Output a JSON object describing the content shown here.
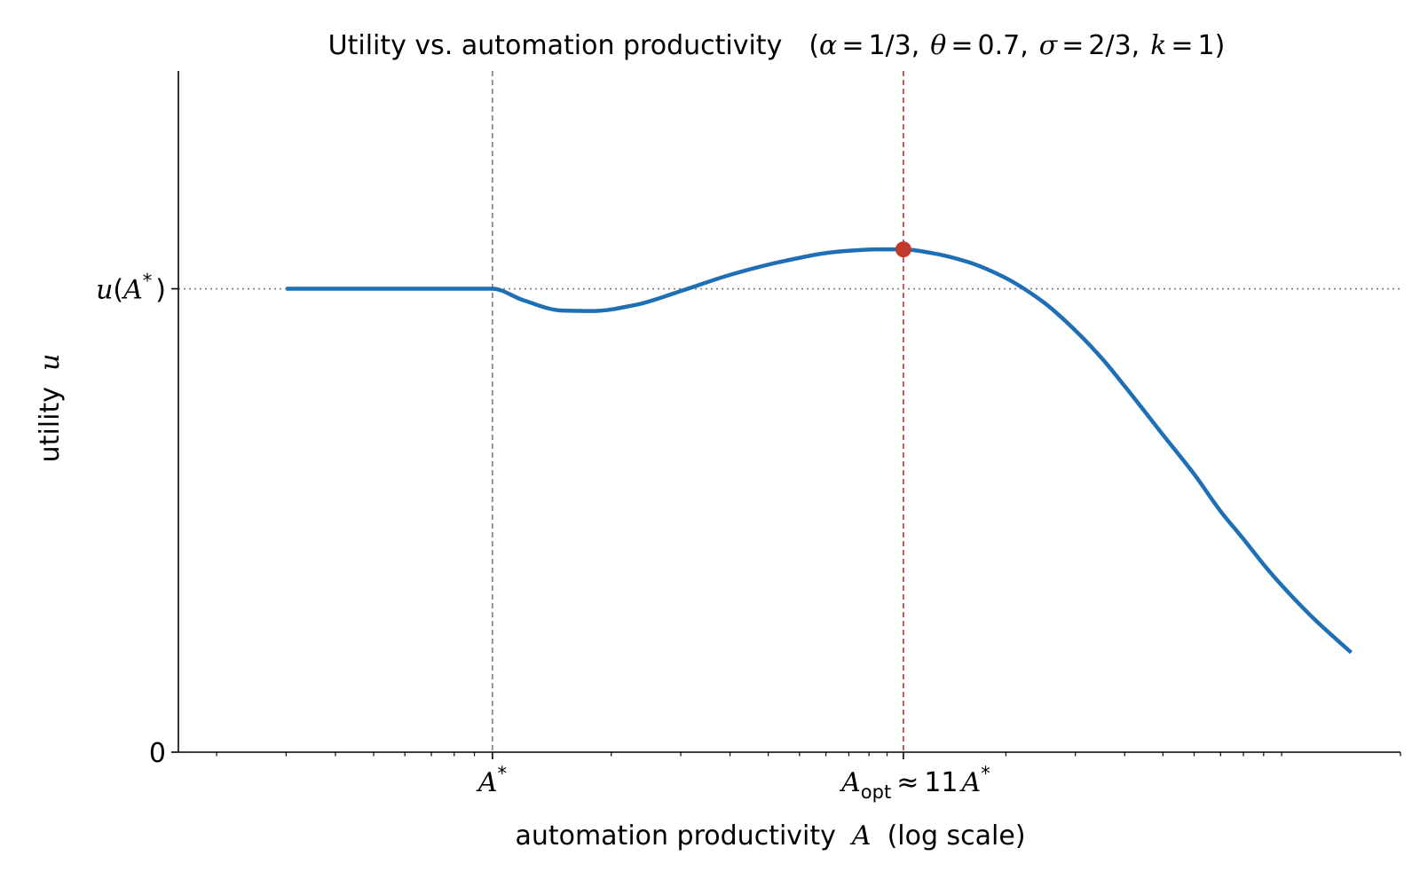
{
  "chart_data": {
    "type": "line",
    "title": "Utility vs. automation productivity",
    "title_params": {
      "prefix": "(",
      "alpha_sym": "α",
      "alpha_val": "1/3",
      "theta_sym": "θ",
      "theta_val": "0.7",
      "sigma_sym": "σ",
      "sigma_val": "2/3",
      "k_sym": "k",
      "k_val": "1",
      "suffix": ")"
    },
    "xlabel": {
      "prefix": "automation productivity",
      "var": "A",
      "suffix": "(log scale)"
    },
    "ylabel": {
      "prefix": "utility",
      "var": "u"
    },
    "x_scale": "log",
    "x_unit": "A / A*",
    "xlim": [
      0.16,
      200
    ],
    "ylim": [
      0,
      1.47
    ],
    "grid": false,
    "legend": "none",
    "reference_lines": {
      "a_star": {
        "x": 1,
        "style": "dashed",
        "color": "#7f7f7f"
      },
      "a_opt": {
        "x": 11,
        "style": "dashed",
        "color": "#c0392b"
      },
      "u_a_star": {
        "y": 1,
        "style": "dotted",
        "color": "#7f7f7f"
      }
    },
    "x_tick_labels": {
      "a_star": {
        "base": "A",
        "sup": "*"
      },
      "a_opt": {
        "base": "A",
        "sub": "opt",
        "approx": "≈",
        "mult": "11",
        "base2": "A",
        "sup2": "*"
      }
    },
    "y_tick_labels": {
      "zero": "0",
      "u_star": {
        "func": "u",
        "open": "(",
        "base": "A",
        "sup": "*",
        "close": ")"
      }
    },
    "optimum_marker": {
      "x": 11,
      "y": 1.085,
      "color": "#c0392b"
    },
    "series": [
      {
        "color": "#1f6fb4",
        "x": [
          0.3,
          0.5,
          0.8,
          1.0,
          1.2,
          1.5,
          1.8,
          2.3,
          3.0,
          4.0,
          5.5,
          7.5,
          9.5,
          11.0,
          13.0,
          16.0,
          20.0,
          25.0,
          30.0,
          35.0,
          40.0,
          50.0,
          60.0,
          70.0,
          80.0,
          90.0,
          100.0,
          120.0,
          150.0
        ],
        "y": [
          1.0,
          1.0,
          1.0,
          1.0,
          0.975,
          0.953,
          0.952,
          0.965,
          0.995,
          1.03,
          1.06,
          1.08,
          1.085,
          1.085,
          1.077,
          1.058,
          1.023,
          0.97,
          0.91,
          0.85,
          0.79,
          0.685,
          0.6,
          0.52,
          0.46,
          0.405,
          0.36,
          0.29,
          0.215
        ]
      }
    ]
  }
}
